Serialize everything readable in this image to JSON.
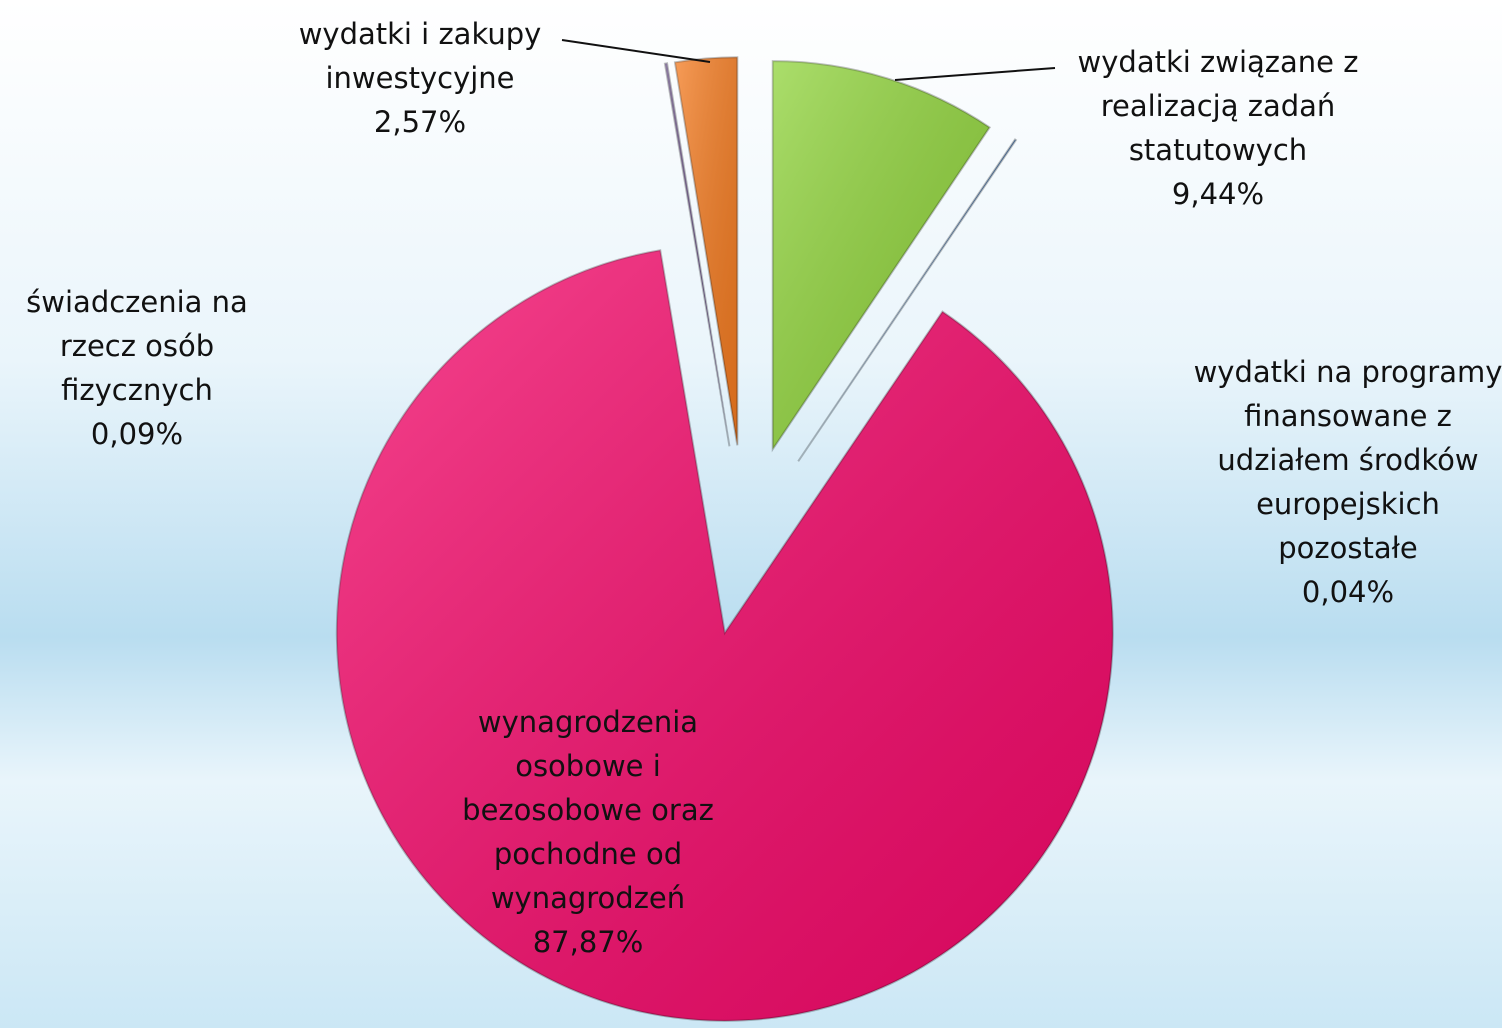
{
  "chart_data": {
    "type": "pie",
    "categories": [
      "wydatki związane z realizacją zadań statutowych",
      "wydatki na programy finansowane z udziałem środków europejskich pozostałe",
      "wynagrodzenia osobowe i bezosobowe oraz pochodne od wynagrodzeń",
      "świadczenia na rzecz osób fizycznych",
      "wydatki i zakupy inwestycyjne"
    ],
    "values": [
      9.44,
      0.04,
      87.87,
      0.09,
      2.57
    ],
    "value_labels": [
      "9,44%",
      "0,04%",
      "87,87%",
      "0,09%",
      "2,57%"
    ],
    "colors": [
      "#8fd33a",
      "#4f81bd",
      "#f5086a",
      "#8064a2",
      "#f47b20"
    ]
  }
}
